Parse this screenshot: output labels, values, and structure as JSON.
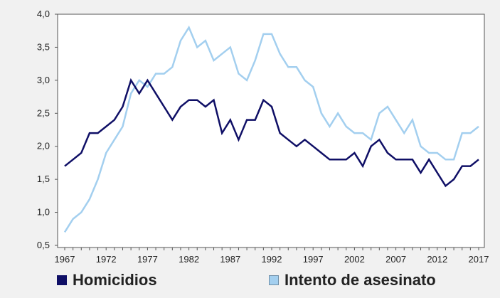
{
  "chart_data": {
    "type": "line",
    "title": "",
    "xlabel": "",
    "ylabel": "",
    "xlim": [
      1967,
      2017
    ],
    "ylim": [
      0.5,
      4.0
    ],
    "grid": false,
    "legend_position": "bottom",
    "x_tick_labels": [
      "1967",
      "1972",
      "1977",
      "1982",
      "1987",
      "1992",
      "1997",
      "2002",
      "2007",
      "2012",
      "2017"
    ],
    "y_tick_labels": [
      "0,5",
      "1,0",
      "1,5",
      "2,0",
      "2,5",
      "3,0",
      "3,5",
      "4,0"
    ],
    "x": [
      1967,
      1968,
      1969,
      1970,
      1971,
      1972,
      1973,
      1974,
      1975,
      1976,
      1977,
      1978,
      1979,
      1980,
      1981,
      1982,
      1983,
      1984,
      1985,
      1986,
      1987,
      1988,
      1989,
      1990,
      1991,
      1992,
      1993,
      1994,
      1995,
      1996,
      1997,
      1998,
      1999,
      2000,
      2001,
      2002,
      2003,
      2004,
      2005,
      2006,
      2007,
      2008,
      2009,
      2010,
      2011,
      2012,
      2013,
      2014,
      2015,
      2016,
      2017
    ],
    "series": [
      {
        "name": "Homicidios",
        "color": "#0f0f66",
        "values": [
          1.7,
          1.8,
          1.9,
          2.2,
          2.2,
          2.3,
          2.4,
          2.6,
          3.0,
          2.8,
          3.0,
          2.8,
          2.6,
          2.4,
          2.6,
          2.7,
          2.7,
          2.6,
          2.7,
          2.2,
          2.4,
          2.1,
          2.4,
          2.4,
          2.7,
          2.6,
          2.2,
          2.1,
          2.0,
          2.1,
          2.0,
          1.9,
          1.8,
          1.8,
          1.8,
          1.9,
          1.7,
          2.0,
          2.1,
          1.9,
          1.8,
          1.8,
          1.8,
          1.6,
          1.8,
          1.6,
          1.4,
          1.5,
          1.7,
          1.7,
          1.8
        ]
      },
      {
        "name": "Intento de asesinato",
        "color": "#a3cfef",
        "values": [
          0.7,
          0.9,
          1.0,
          1.2,
          1.5,
          1.9,
          2.1,
          2.3,
          2.8,
          3.0,
          2.9,
          3.1,
          3.1,
          3.2,
          3.6,
          3.8,
          3.5,
          3.6,
          3.3,
          3.4,
          3.5,
          3.1,
          3.0,
          3.3,
          3.7,
          3.7,
          3.4,
          3.2,
          3.2,
          3.0,
          2.9,
          2.5,
          2.3,
          2.5,
          2.3,
          2.2,
          2.2,
          2.1,
          2.5,
          2.6,
          2.4,
          2.2,
          2.4,
          2.0,
          1.9,
          1.9,
          1.8,
          1.8,
          2.2,
          2.2,
          2.3
        ]
      }
    ]
  }
}
